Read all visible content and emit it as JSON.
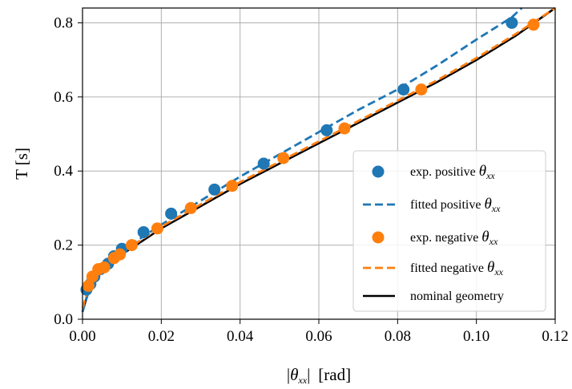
{
  "chart_data": {
    "type": "scatter",
    "xlabel": "|θxx|  [rad]",
    "xlabel_parts": {
      "bar_left": "|",
      "symbol": "θ",
      "subscript": "xx",
      "bar_right": "|",
      "unit": "[rad]"
    },
    "ylabel": "T [s]",
    "xlim": [
      0.0,
      0.12
    ],
    "ylim": [
      0.0,
      0.84
    ],
    "xticks": [
      "0.00",
      "0.02",
      "0.04",
      "0.06",
      "0.08",
      "0.10",
      "0.12"
    ],
    "yticks": [
      "0.0",
      "0.2",
      "0.4",
      "0.6",
      "0.8"
    ],
    "grid": true,
    "legend_position": "lower-right",
    "series": [
      {
        "name": "exp. positive θxx",
        "label_text": "exp. positive ",
        "style": "markers",
        "color": "#1f77b4",
        "x": [
          0.001,
          0.002,
          0.003,
          0.0045,
          0.0065,
          0.008,
          0.01,
          0.0155,
          0.0225,
          0.0335,
          0.046,
          0.062,
          0.0815,
          0.109
        ],
        "y": [
          0.08,
          0.095,
          0.115,
          0.135,
          0.15,
          0.17,
          0.19,
          0.235,
          0.285,
          0.35,
          0.42,
          0.51,
          0.62,
          0.8
        ]
      },
      {
        "name": "fitted positive θxx",
        "label_text": "fitted positive ",
        "style": "dashed",
        "color": "#1f77b4",
        "x": [
          0.0,
          0.002,
          0.005,
          0.01,
          0.02,
          0.03,
          0.04,
          0.05,
          0.06,
          0.07,
          0.08,
          0.09,
          0.1,
          0.109,
          0.1115
        ],
        "y": [
          0.02,
          0.09,
          0.135,
          0.185,
          0.255,
          0.32,
          0.385,
          0.445,
          0.505,
          0.565,
          0.62,
          0.685,
          0.755,
          0.815,
          0.84
        ]
      },
      {
        "name": "exp. negative θxx",
        "label_text": "exp. negative ",
        "style": "markers",
        "color": "#ff7f0e",
        "x": [
          0.0015,
          0.0025,
          0.004,
          0.0055,
          0.008,
          0.0095,
          0.0125,
          0.019,
          0.0275,
          0.038,
          0.051,
          0.0665,
          0.086,
          0.1145
        ],
        "y": [
          0.09,
          0.115,
          0.135,
          0.14,
          0.165,
          0.175,
          0.2,
          0.245,
          0.3,
          0.36,
          0.435,
          0.515,
          0.62,
          0.795
        ]
      },
      {
        "name": "fitted negative θxx",
        "label_text": "fitted negative ",
        "style": "dashed",
        "color": "#ff7f0e",
        "x": [
          0.0,
          0.002,
          0.005,
          0.01,
          0.02,
          0.03,
          0.04,
          0.05,
          0.06,
          0.07,
          0.08,
          0.09,
          0.1,
          0.11,
          0.12
        ],
        "y": [
          0.03,
          0.1,
          0.135,
          0.18,
          0.25,
          0.31,
          0.37,
          0.425,
          0.48,
          0.535,
          0.59,
          0.645,
          0.705,
          0.77,
          0.84
        ]
      },
      {
        "name": "nominal geometry",
        "label_text": "nominal geometry",
        "style": "solid",
        "color": "#000000",
        "x": [
          0.0,
          0.002,
          0.005,
          0.01,
          0.02,
          0.03,
          0.04,
          0.05,
          0.06,
          0.07,
          0.08,
          0.09,
          0.1,
          0.11,
          0.12
        ],
        "y": [
          0.02,
          0.095,
          0.13,
          0.175,
          0.245,
          0.305,
          0.365,
          0.42,
          0.475,
          0.53,
          0.585,
          0.64,
          0.7,
          0.765,
          0.84
        ]
      }
    ]
  }
}
